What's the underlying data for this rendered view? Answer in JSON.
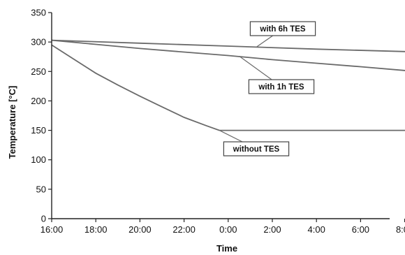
{
  "chart_data": {
    "type": "line",
    "title": "",
    "xlabel": "Time",
    "ylabel": "Temperature [°C]",
    "x_ticks": [
      "16:00",
      "18:00",
      "20:00",
      "22:00",
      "0:00",
      "2:00",
      "4:00",
      "6:00",
      "8:00"
    ],
    "y_ticks": [
      "0",
      "50",
      "100",
      "150",
      "200",
      "250",
      "300",
      "350"
    ],
    "ylim": [
      0,
      350
    ],
    "xlim_hours_from_16": [
      0,
      17
    ],
    "grid": false,
    "legend": "none",
    "series": [
      {
        "label": "with 6h TES",
        "points": [
          [
            0,
            303
          ],
          [
            4,
            298
          ],
          [
            8,
            293
          ],
          [
            12,
            288
          ],
          [
            16.8,
            283
          ]
        ]
      },
      {
        "label": "with 1h TES",
        "points": [
          [
            0,
            303
          ],
          [
            2,
            296
          ],
          [
            4,
            289
          ],
          [
            6,
            283
          ],
          [
            8,
            277
          ],
          [
            10,
            270
          ],
          [
            12,
            264
          ],
          [
            14,
            258
          ],
          [
            16.8,
            249
          ]
        ]
      },
      {
        "label": "without TES",
        "points": [
          [
            0,
            295
          ],
          [
            1,
            271
          ],
          [
            2,
            247
          ],
          [
            3,
            227
          ],
          [
            4,
            208
          ],
          [
            5,
            190
          ],
          [
            6,
            172
          ],
          [
            7,
            158
          ],
          [
            7.6,
            150
          ],
          [
            10,
            150
          ],
          [
            13,
            150
          ],
          [
            16.8,
            150
          ]
        ]
      }
    ],
    "annotations": [
      {
        "text": "with 6h TES",
        "target_x": 9.3,
        "target_y": 292
      },
      {
        "text": "with 1h TES",
        "target_x": 8.5,
        "target_y": 276
      },
      {
        "text": "without TES",
        "target_x": 7.6,
        "target_y": 150
      }
    ],
    "colors": {
      "line": "#6a6a6a",
      "axis": "#222222"
    }
  }
}
